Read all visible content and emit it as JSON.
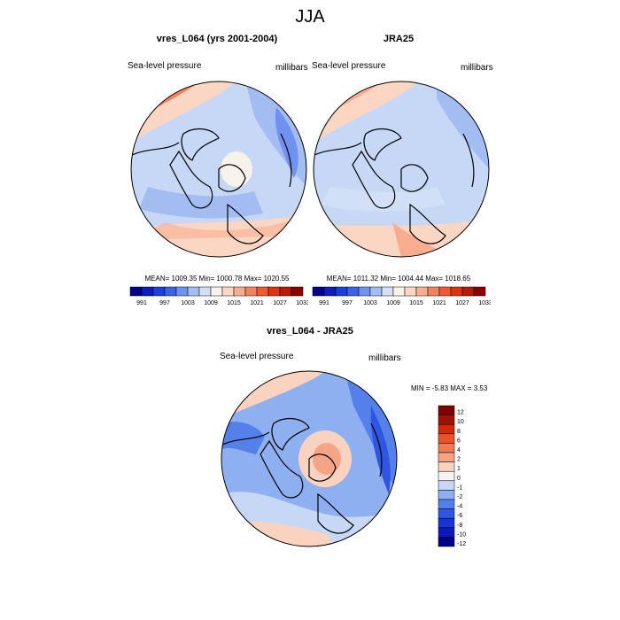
{
  "figure": {
    "title": "JJA"
  },
  "panels": [
    {
      "title": "vres_L064 (yrs 2001-2004)",
      "left_label": "Sea-level pressure",
      "right_label": "millibars",
      "stats": "MEAN= 1009.35  Min= 1000.78  Max= 1020.55"
    },
    {
      "title": "JRA25",
      "left_label": "Sea-level pressure",
      "right_label": "millibars",
      "stats": "MEAN= 1011.32  Min= 1004.44  Max= 1018.65"
    },
    {
      "title": "vres_L064 - JRA25",
      "left_label": "Sea-level pressure",
      "right_label": "millibars",
      "stats": "MIN =  -5.83 MAX =   3.53"
    }
  ],
  "abs_colorbar": {
    "colors": [
      "#00008b",
      "#0d1dbf",
      "#1e3fe0",
      "#3b63e8",
      "#6f92ee",
      "#a3bdf3",
      "#d2e0f7",
      "#f7f2ea",
      "#fbd6c2",
      "#f8ad8e",
      "#f4825e",
      "#ef5a32",
      "#e0320f",
      "#b81a05",
      "#8b0000"
    ],
    "tick_labels": [
      "991",
      "997",
      "1003",
      "1009",
      "1015",
      "1021",
      "1027",
      "1033"
    ]
  },
  "diff_colorbar": {
    "colors": [
      "#00008b",
      "#0b1ab8",
      "#1834d6",
      "#2f55e3",
      "#5580ea",
      "#8eb0f0",
      "#c6d8f6",
      "#f4f4f2",
      "#fad3c0",
      "#f5a585",
      "#f07b52",
      "#e8522a",
      "#cf2a08",
      "#a50f02",
      "#7d0000"
    ],
    "tick_labels": [
      "12",
      "10",
      "8",
      "6",
      "4",
      "2",
      "1",
      "0",
      "-1",
      "-2",
      "-4",
      "-6",
      "-8",
      "-10",
      "-12"
    ]
  }
}
